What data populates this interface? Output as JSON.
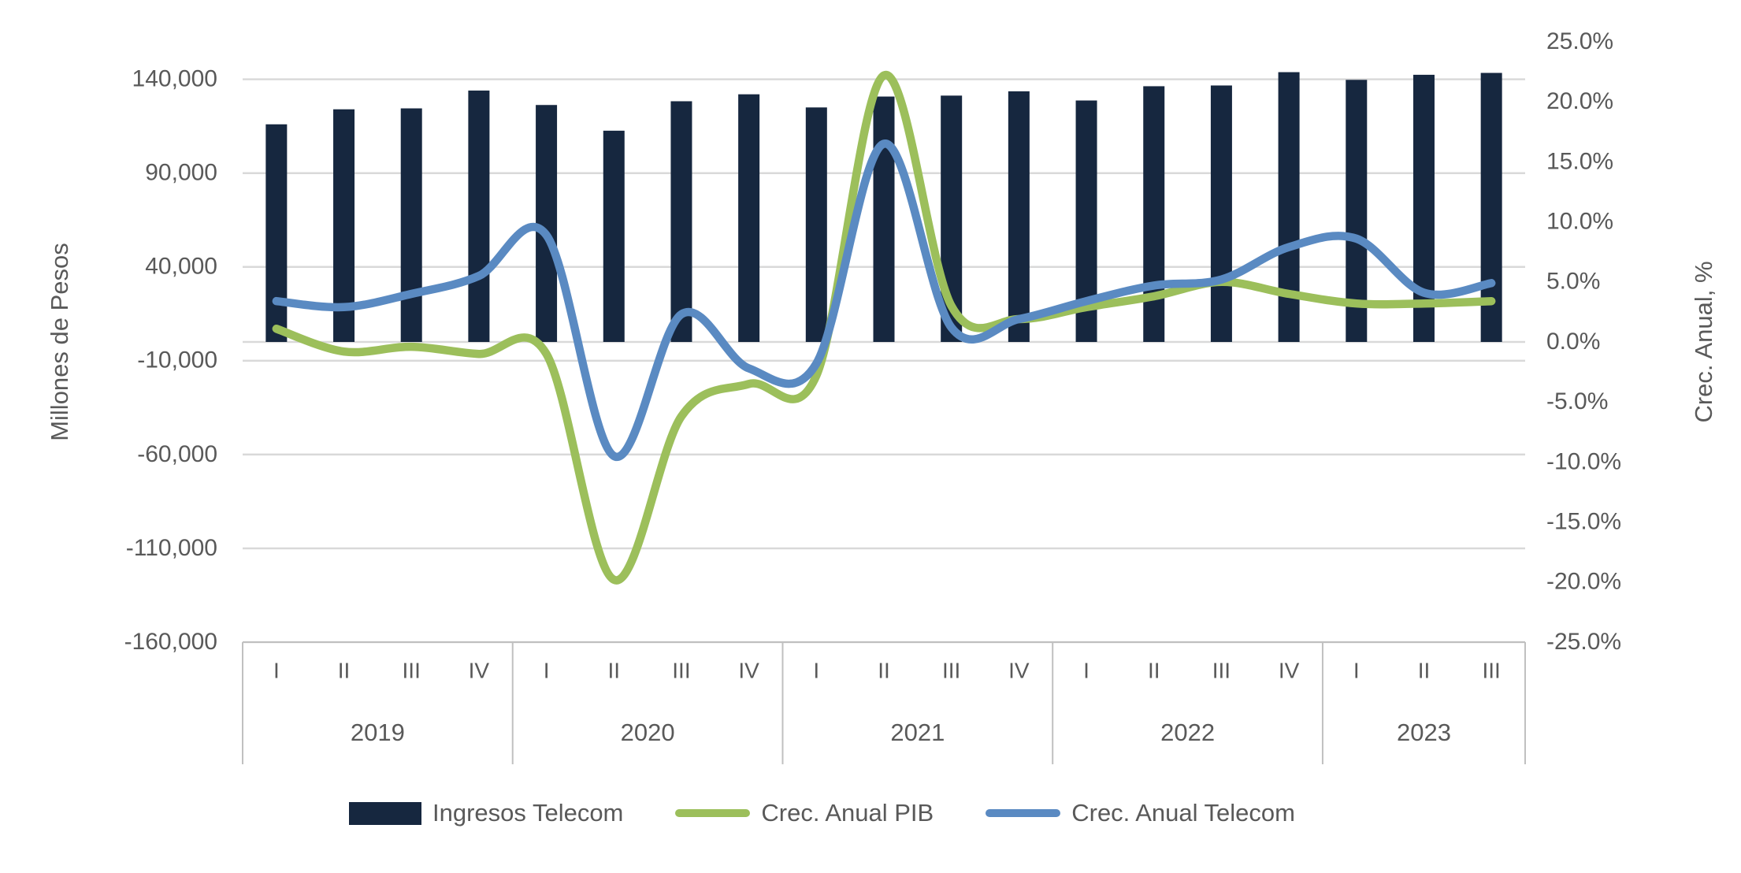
{
  "chart_data": {
    "type": "combo",
    "categories": [
      "I",
      "II",
      "III",
      "IV",
      "I",
      "II",
      "III",
      "IV",
      "I",
      "II",
      "III",
      "IV",
      "I",
      "II",
      "III",
      "IV",
      "I",
      "II",
      "III"
    ],
    "year_groups": [
      {
        "label": "2019",
        "count": 4
      },
      {
        "label": "2020",
        "count": 4
      },
      {
        "label": "2021",
        "count": 4
      },
      {
        "label": "2022",
        "count": 4
      },
      {
        "label": "2023",
        "count": 3
      }
    ],
    "series": [
      {
        "name": "Ingresos Telecom",
        "type": "bar",
        "axis": "left",
        "color": "#16273F",
        "values": [
          116000,
          124000,
          124500,
          134000,
          126300,
          112600,
          128300,
          132000,
          125000,
          130800,
          131300,
          133600,
          128700,
          136300,
          136700,
          143800,
          139700,
          142400,
          143400
        ]
      },
      {
        "name": "Crec. Anual PIB",
        "type": "line",
        "axis": "right",
        "color": "#9CBF5B",
        "values": [
          1.1,
          -0.8,
          -0.4,
          -1.0,
          -1.0,
          -19.8,
          -6.2,
          -3.5,
          -2.8,
          22.2,
          3.0,
          1.9,
          2.9,
          3.8,
          5.0,
          4.0,
          3.2,
          3.2,
          3.4
        ]
      },
      {
        "name": "Crec. Anual Telecom",
        "type": "line",
        "axis": "right",
        "color": "#5A8AC2",
        "values": [
          3.4,
          2.9,
          4.0,
          5.5,
          8.9,
          -9.5,
          2.3,
          -2.2,
          -1.8,
          16.5,
          1.2,
          1.9,
          3.4,
          4.7,
          5.2,
          7.9,
          8.6,
          4.1,
          4.9
        ]
      }
    ],
    "left_axis": {
      "title": "Millones de Pesos",
      "min": -160000,
      "max": 160000,
      "tick_values": [
        140000,
        90000,
        40000,
        -10000,
        -60000,
        -110000,
        -160000
      ],
      "tick_labels": [
        "140,000",
        "90,000",
        "40,000",
        "-10,000",
        "-60,000",
        "-110,000",
        "-160,000"
      ]
    },
    "right_axis": {
      "title": "Crec. Anual, %",
      "min": -25,
      "max": 25,
      "tick_values": [
        25,
        20,
        15,
        10,
        5,
        0,
        -5,
        -10,
        -15,
        -20,
        -25
      ],
      "tick_labels": [
        "25.0%",
        "20.0%",
        "15.0%",
        "10.0%",
        "5.0%",
        "0.0%",
        "-5.0%",
        "-10.0%",
        "-15.0%",
        "-20.0%",
        "-25.0%"
      ]
    },
    "legend": {
      "position": "bottom"
    },
    "grid": true,
    "styles": {
      "gridline_color": "#D9D9D9",
      "band_line_color": "#C0C0C0",
      "text_color": "#595959",
      "background": "#FFFFFF"
    }
  }
}
